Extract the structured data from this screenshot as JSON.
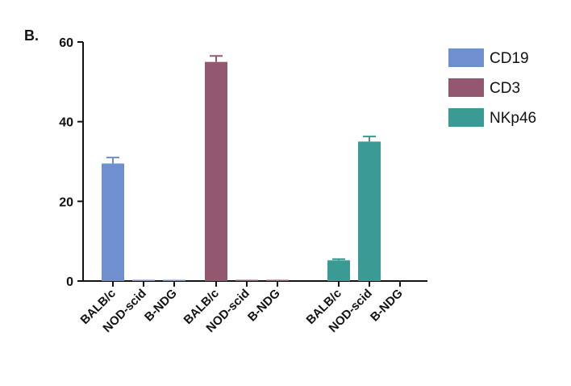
{
  "chart_data": {
    "type": "bar",
    "panel_label": "B.",
    "categories": [
      "BALB/c",
      "NOD-scid",
      "B-NDG"
    ],
    "series": [
      {
        "name": "CD19",
        "color": "#6f8fcf",
        "values": [
          29.5,
          0.3,
          0.3
        ],
        "errors": [
          1.5,
          0,
          0
        ]
      },
      {
        "name": "CD3",
        "color": "#935870",
        "values": [
          55,
          0.3,
          0.3
        ],
        "errors": [
          1.5,
          0,
          0
        ]
      },
      {
        "name": "NKp46",
        "color": "#3a9a94",
        "values": [
          5.2,
          35,
          0
        ],
        "errors": [
          0.3,
          1.3,
          0
        ]
      }
    ],
    "ylim": [
      0,
      60
    ],
    "yticks": [
      0,
      20,
      40,
      60
    ],
    "legend": "right"
  }
}
